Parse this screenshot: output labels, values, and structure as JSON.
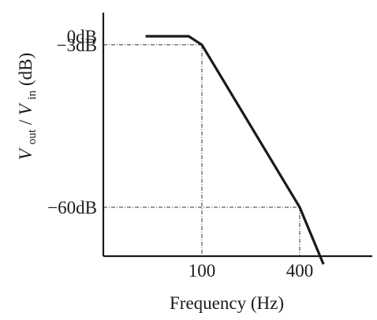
{
  "chart_data": {
    "type": "line",
    "title": "",
    "xlabel": "Frequency (Hz)",
    "ylabel": {
      "numerator_symbol": "V",
      "numerator_sub": "out",
      "separator": "/",
      "denominator_symbol": "V",
      "denominator_sub": "in",
      "unit": " (dB)"
    },
    "x_scale": "log",
    "xlim": [
      45,
      800
    ],
    "ylim": [
      -80,
      0
    ],
    "grid": false,
    "x_ticks": [
      {
        "value": 100,
        "label": "100"
      },
      {
        "value": 400,
        "label": "400"
      }
    ],
    "y_ticks": [
      {
        "value": 0,
        "label": "0dB"
      },
      {
        "value": -3,
        "label": "−3dB"
      },
      {
        "value": -60,
        "label": "−60dB"
      }
    ],
    "series": [
      {
        "x": [
          45,
          83,
          100,
          400,
          560
        ],
        "y": [
          0,
          0,
          -3,
          -60,
          -80
        ]
      }
    ],
    "reference_lines": [
      {
        "orientation": "horizontal",
        "value": -3,
        "to_x": 100
      },
      {
        "orientation": "horizontal",
        "value": -60,
        "to_x": 400
      },
      {
        "orientation": "vertical",
        "value": 100,
        "from_y": -3
      },
      {
        "orientation": "vertical",
        "value": 400,
        "from_y": -60
      }
    ]
  }
}
